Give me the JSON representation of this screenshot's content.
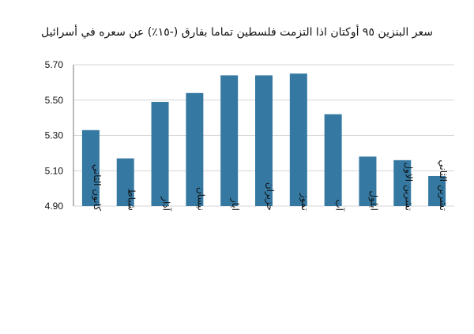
{
  "chart_data": {
    "type": "bar",
    "title": "سعر البنزين ٩٥ أوكتان اذا التزمت فلسطين تماما بفارق (-١٥٪) عن سعره في أسرائيل",
    "categories": [
      "كانون الثاني",
      "شباط",
      "آذار",
      "نيسان",
      "ايار",
      "حزيران",
      "تموز",
      "آب",
      "ايلول",
      "تشرين الاول",
      "تشرين الثاني"
    ],
    "values": [
      5.33,
      5.17,
      5.49,
      5.54,
      5.64,
      5.64,
      5.65,
      5.42,
      5.18,
      5.16,
      5.07
    ],
    "ylim": [
      4.9,
      5.7
    ],
    "yticks": [
      "4.90",
      "5.10",
      "5.30",
      "5.50",
      "5.70"
    ],
    "grid": true,
    "bar_color": "#3579a3"
  }
}
